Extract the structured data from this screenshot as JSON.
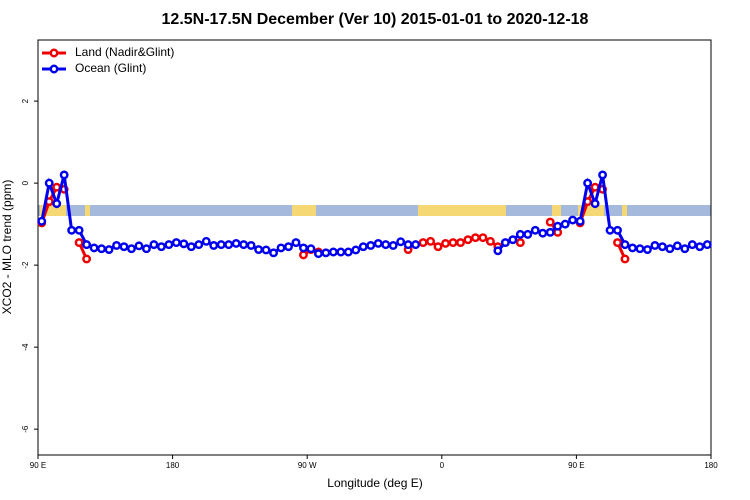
{
  "chart_data": {
    "type": "line",
    "title": "12.5N-17.5N December (Ver 10)   2015-01-01 to 2020-12-18",
    "x_label": "Longitude (deg E)",
    "y_label": "XCO2 - MLO trend (ppm)",
    "x": [
      92.5,
      97.5,
      102.5,
      107.5,
      112.5,
      117.5,
      122.5,
      127.5,
      132.5,
      137.5,
      142.5,
      147.5,
      152.5,
      157.5,
      162.5,
      167.5,
      172.5,
      177.5,
      182.5,
      187.5,
      192.5,
      197.5,
      202.5,
      207.5,
      212.5,
      217.5,
      222.5,
      227.5,
      232.5,
      237.5,
      242.5,
      247.5,
      252.5,
      257.5,
      262.5,
      267.5,
      272.5,
      277.5,
      282.5,
      287.5,
      292.5,
      297.5,
      302.5,
      307.5,
      312.5,
      317.5,
      322.5,
      327.5,
      332.5,
      337.5,
      342.5,
      347.5,
      352.5,
      357.5,
      362.5,
      367.5,
      372.5,
      377.5,
      382.5,
      387.5,
      392.5,
      397.5,
      402.5,
      407.5,
      412.5,
      417.5,
      422.5,
      427.5,
      432.5,
      437.5,
      442.5,
      447.5,
      452.5,
      457.5,
      462.5,
      467.5,
      472.5,
      477.5,
      482.5,
      487.5,
      492.5,
      497.5,
      502.5,
      507.5,
      512.5,
      517.5,
      522.5,
      527.5,
      532.5,
      537.5
    ],
    "series": [
      {
        "name": "Land (Nadir&Glint)",
        "color": "#ee0000",
        "values": [
          -0.97,
          -0.45,
          -0.1,
          -0.15,
          null,
          -1.45,
          -1.85,
          null,
          null,
          null,
          null,
          null,
          null,
          null,
          null,
          null,
          null,
          null,
          null,
          null,
          null,
          null,
          null,
          null,
          null,
          null,
          null,
          null,
          null,
          null,
          null,
          null,
          null,
          null,
          null,
          -1.75,
          -1.62,
          -1.68,
          null,
          null,
          null,
          null,
          null,
          null,
          null,
          null,
          null,
          null,
          null,
          -1.62,
          null,
          -1.45,
          -1.42,
          -1.55,
          -1.47,
          -1.45,
          -1.45,
          -1.38,
          -1.33,
          -1.33,
          -1.42,
          -1.55,
          null,
          null,
          -1.45,
          null,
          null,
          null,
          -0.95,
          -1.2,
          null,
          null,
          -0.97,
          -0.45,
          -0.1,
          -0.15,
          null,
          -1.45,
          -1.85,
          null,
          null,
          null,
          null,
          null,
          null,
          null,
          null,
          null,
          null,
          null
        ]
      },
      {
        "name": "Ocean (Glint)",
        "color": "#0000ee",
        "values": [
          -0.93,
          0,
          -0.5,
          0.2,
          -1.15,
          -1.15,
          -1.5,
          -1.58,
          -1.6,
          -1.62,
          -1.52,
          -1.55,
          -1.6,
          -1.53,
          -1.6,
          -1.5,
          -1.55,
          -1.5,
          -1.45,
          -1.48,
          -1.55,
          -1.5,
          -1.42,
          -1.52,
          -1.5,
          -1.5,
          -1.47,
          -1.5,
          -1.52,
          -1.62,
          -1.63,
          -1.7,
          -1.58,
          -1.55,
          -1.45,
          -1.58,
          -1.6,
          -1.72,
          -1.7,
          -1.68,
          -1.68,
          -1.68,
          -1.63,
          -1.55,
          -1.52,
          -1.47,
          -1.5,
          -1.52,
          -1.43,
          -1.5,
          -1.5,
          null,
          null,
          null,
          null,
          null,
          null,
          null,
          null,
          null,
          null,
          -1.65,
          -1.45,
          -1.38,
          -1.25,
          -1.25,
          -1.15,
          -1.22,
          -1.2,
          -1.05,
          -1.0,
          -0.9,
          -0.93,
          0,
          -0.5,
          0.2,
          -1.15,
          -1.15,
          -1.5,
          -1.58,
          -1.6,
          -1.62,
          -1.52,
          -1.55,
          -1.6,
          -1.53,
          -1.6,
          -1.5,
          -1.55,
          -1.5
        ]
      }
    ],
    "xlim": [
      90,
      540
    ],
    "xticks": [
      {
        "value": 90,
        "label": "90 E"
      },
      180,
      {
        "value": 270,
        "label": "90 W"
      },
      {
        "value": 360,
        "label": "0"
      },
      {
        "value": 450,
        "label": "90 E"
      },
      180.0001
    ],
    "ylim": [
      -6.63,
      3.49
    ],
    "yticks": [
      -6,
      -4,
      -2,
      0,
      2
    ],
    "legend": "upper left"
  }
}
